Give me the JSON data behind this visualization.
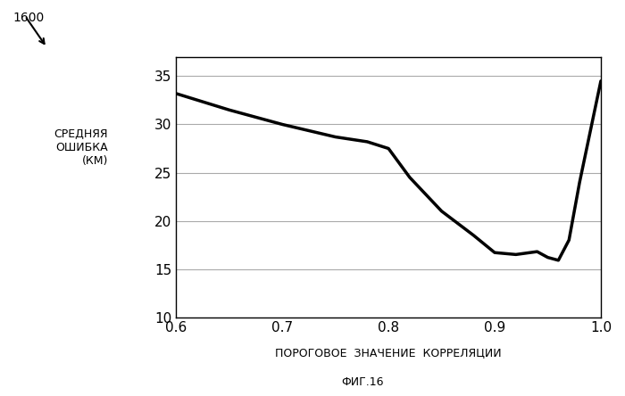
{
  "x": [
    0.6,
    0.65,
    0.7,
    0.75,
    0.78,
    0.8,
    0.82,
    0.85,
    0.88,
    0.9,
    0.92,
    0.94,
    0.95,
    0.96,
    0.97,
    0.98,
    1.0
  ],
  "y": [
    33.2,
    31.5,
    30.0,
    28.7,
    28.2,
    27.5,
    24.5,
    21.0,
    18.5,
    16.7,
    16.5,
    16.8,
    16.2,
    15.9,
    18.0,
    24.0,
    34.5
  ],
  "xlim": [
    0.6,
    1.0
  ],
  "ylim": [
    10,
    37
  ],
  "xticks": [
    0.6,
    0.7,
    0.8,
    0.9,
    1.0
  ],
  "yticks": [
    10,
    15,
    20,
    25,
    30,
    35
  ],
  "xlabel": "ПОРОГОВОЕ  ЗНАЧЕНИЕ  КОРРЕЛЯЦИИ",
  "ylabel": "СРЕДНЯЯ\nОШИБКА\n(КМ)",
  "subtitle": "ФИГ.16",
  "annotation": "1600",
  "line_color": "#000000",
  "line_width": 2.5,
  "background_color": "#ffffff",
  "grid_color": "#aaaaaa",
  "fig_width": 7.0,
  "fig_height": 4.44
}
